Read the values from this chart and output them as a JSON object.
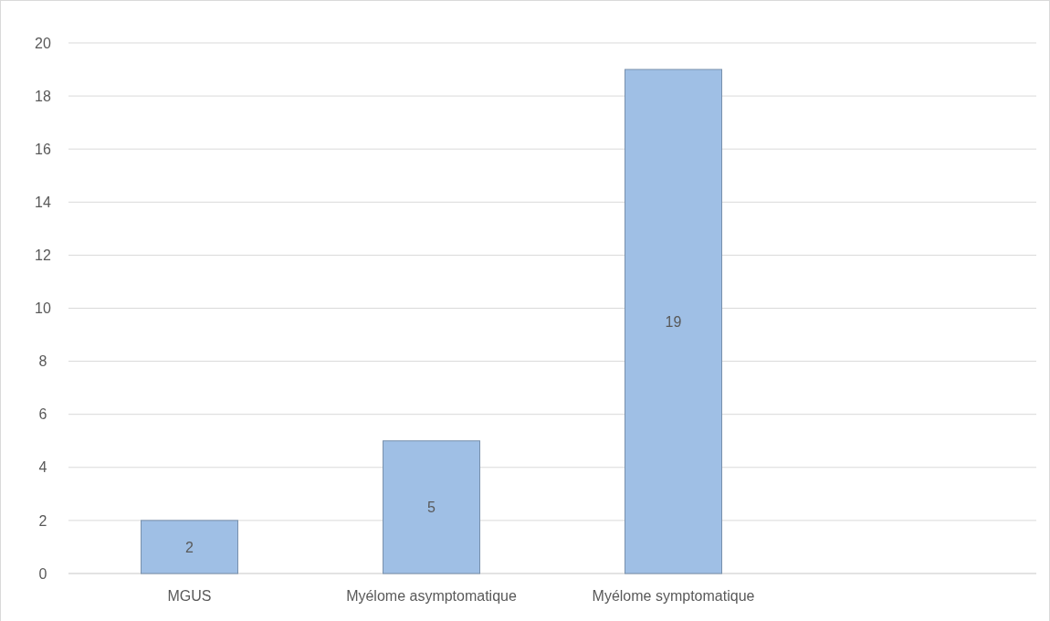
{
  "chart_data": {
    "type": "bar",
    "categories": [
      "MGUS",
      "Myélome asymptomatique",
      "Myélome symptomatique",
      null
    ],
    "values": [
      2,
      5,
      19,
      null
    ],
    "color": "#9fbfe5",
    "ylim": [
      0,
      20
    ],
    "yticks": [
      0,
      2,
      4,
      6,
      8,
      10,
      12,
      14,
      16,
      18,
      20
    ],
    "grid": "y",
    "data_labels": true
  }
}
